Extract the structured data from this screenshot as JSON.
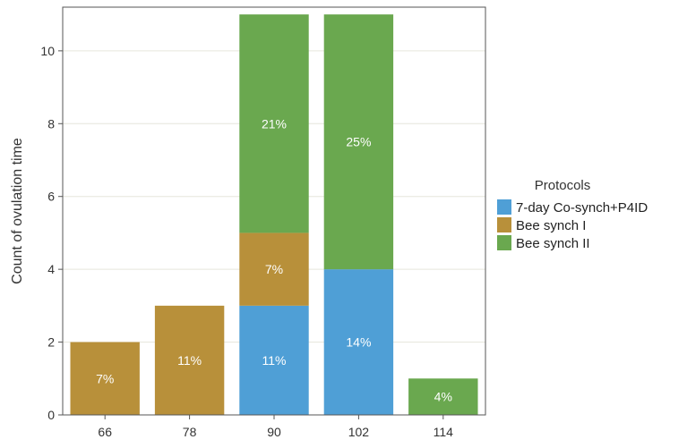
{
  "chart_data": {
    "type": "bar",
    "stacked": true,
    "categories": [
      "66",
      "78",
      "90",
      "102",
      "114"
    ],
    "series": [
      {
        "name": "7-day Co-synch+P4ID",
        "color": "#4f9fd6",
        "values": [
          0,
          0,
          3,
          4,
          0
        ],
        "labels": [
          "",
          "",
          "11%",
          "14%",
          ""
        ]
      },
      {
        "name": "Bee synch I",
        "color": "#b8903a",
        "values": [
          2,
          3,
          2,
          0,
          0
        ],
        "labels": [
          "7%",
          "11%",
          "7%",
          "",
          ""
        ]
      },
      {
        "name": "Bee synch II",
        "color": "#6aa84f",
        "values": [
          0,
          0,
          6,
          7,
          1
        ],
        "labels": [
          "",
          "",
          "21%",
          "25%",
          "4%"
        ]
      }
    ],
    "ylabel": "Count of ovulation time",
    "xlabel": "",
    "ylim": [
      0,
      11.2
    ],
    "yticks": [
      0,
      2,
      4,
      6,
      8,
      10
    ],
    "grid": true,
    "legend": {
      "title": "Protocols",
      "position": "right"
    }
  }
}
